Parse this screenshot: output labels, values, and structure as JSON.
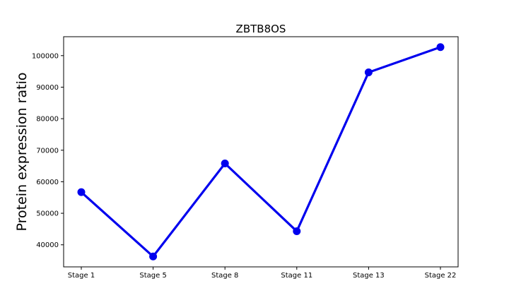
{
  "chart_data": {
    "type": "line",
    "title": "ZBTB8OS",
    "xlabel": "",
    "ylabel": "Protein expression ratio",
    "categories": [
      "Stage 1",
      "Stage 5",
      "Stage 8",
      "Stage 11",
      "Stage 13",
      "Stage 22"
    ],
    "series": [
      {
        "values": [
          56700,
          36300,
          65800,
          44300,
          94700,
          102700
        ]
      }
    ],
    "ylim": [
      33000,
      106000
    ],
    "yticks": [
      40000,
      50000,
      60000,
      70000,
      80000,
      90000,
      100000
    ],
    "grid": false,
    "legend": "none",
    "colors": {
      "line": "#0000ee",
      "marker": "#0000ee",
      "axis": "#000000"
    }
  }
}
